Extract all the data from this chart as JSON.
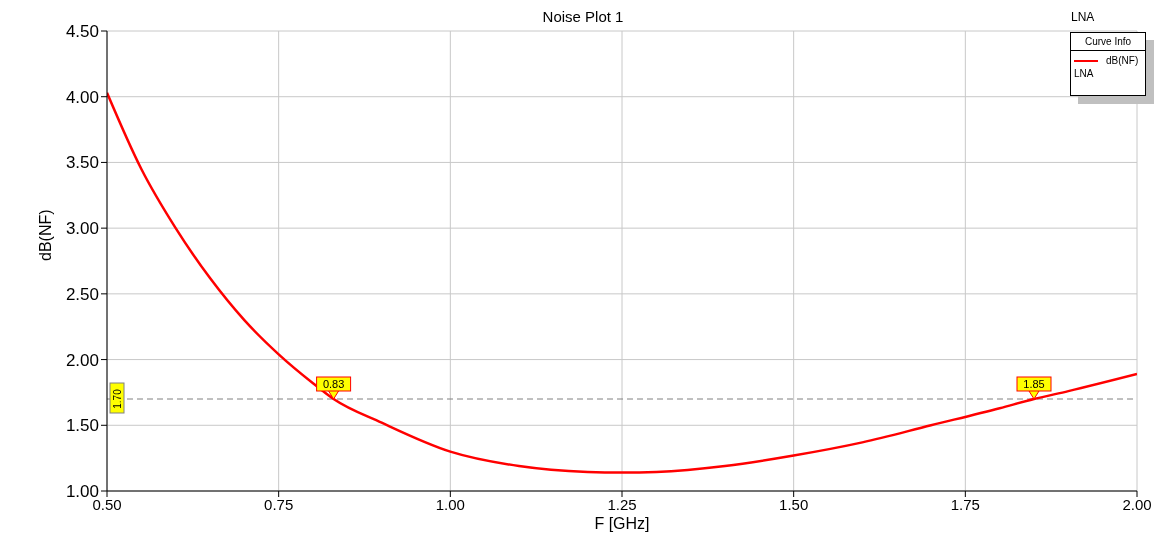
{
  "chart_data": {
    "type": "line",
    "title": "Noise Plot 1",
    "xlabel": "F [GHz]",
    "ylabel": "dB(NF)",
    "legend_title": "Curve Info",
    "legend": "top right",
    "grid": true,
    "marker": "none",
    "line_style": "solid",
    "x": [
      0.5,
      0.55,
      0.6,
      0.65,
      0.7,
      0.75,
      0.8,
      0.83,
      0.9,
      1.0,
      1.1,
      1.2,
      1.25,
      1.3,
      1.4,
      1.5,
      1.6,
      1.7,
      1.8,
      1.85,
      1.9,
      2.0
    ],
    "series": [
      {
        "name": "dB(NF)",
        "color": "#ff0000",
        "values": [
          4.03,
          3.45,
          3.0,
          2.62,
          2.3,
          2.04,
          1.82,
          1.7,
          1.52,
          1.3,
          1.19,
          1.145,
          1.14,
          1.145,
          1.19,
          1.27,
          1.37,
          1.5,
          1.63,
          1.7,
          1.76,
          1.89
        ]
      }
    ],
    "xlim": [
      0.5,
      2.0
    ],
    "xticks": [
      {
        "value": 0.5,
        "label": "0.50"
      },
      {
        "value": 0.75,
        "label": "0.75"
      },
      {
        "value": 1.0,
        "label": "1.00"
      },
      {
        "value": 1.25,
        "label": "1.25"
      },
      {
        "value": 1.5,
        "label": "1.50"
      },
      {
        "value": 1.75,
        "label": "1.75"
      },
      {
        "value": 2.0,
        "label": "2.00"
      }
    ],
    "ylim": [
      1.0,
      4.5
    ],
    "yticks": [
      {
        "value": 1.0,
        "label": "1.00"
      },
      {
        "value": 1.5,
        "label": "1.50"
      },
      {
        "value": 2.0,
        "label": "2.00"
      },
      {
        "value": 2.5,
        "label": "2.50"
      },
      {
        "value": 3.0,
        "label": "3.00"
      },
      {
        "value": 3.5,
        "label": "3.50"
      },
      {
        "value": 4.0,
        "label": "4.00"
      },
      {
        "value": 4.5,
        "label": "4.50"
      }
    ],
    "ref_lines": [
      {
        "axis": "y",
        "value": 1.7,
        "label": "1.70",
        "color": "#808080",
        "line_style": "dashed"
      }
    ],
    "annotations": [
      {
        "text": "0.83",
        "x": 0.83,
        "y": 1.7
      },
      {
        "text": "1.85",
        "x": 1.85,
        "y": 1.7
      },
      "LNA",
      "LNA"
    ]
  }
}
